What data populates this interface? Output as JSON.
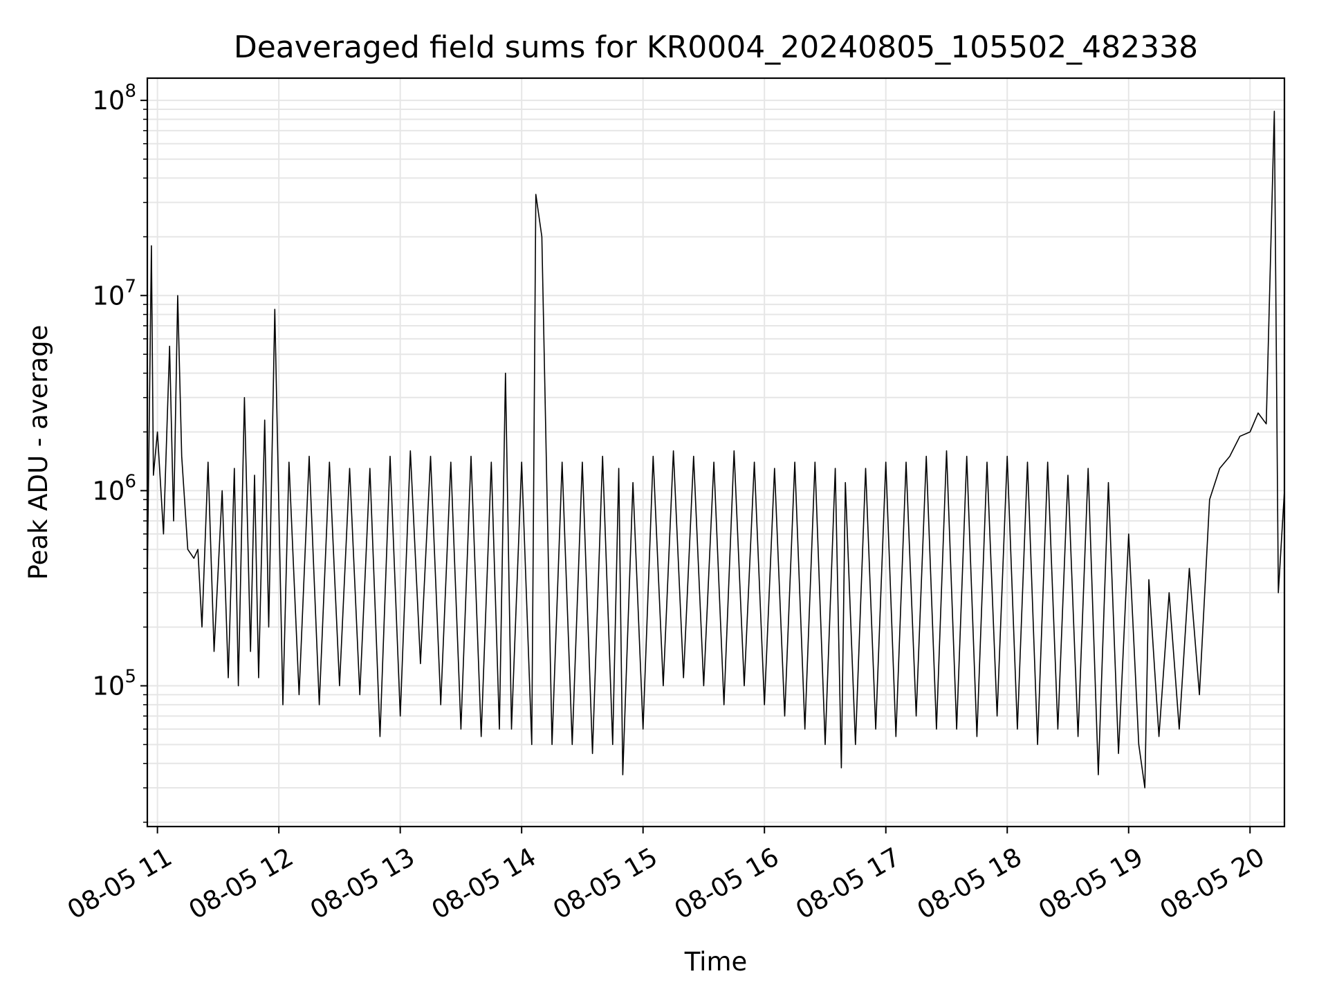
{
  "chart_data": {
    "type": "line",
    "title": "Deaveraged field sums for KR0004_20240805_105502_482338",
    "xlabel": "Time",
    "ylabel": "Peak ADU - average",
    "yscale": "log",
    "ylim": [
      19000,
      130000000
    ],
    "xlim": [
      "2024-08-05T10:55:00",
      "2024-08-05T20:17:00"
    ],
    "grid": true,
    "line_color": "#000000",
    "grid_color": "#e6e6e6",
    "x_ticks": [
      {
        "label": "08-05 11",
        "time": "2024-08-05T11:00:00"
      },
      {
        "label": "08-05 12",
        "time": "2024-08-05T12:00:00"
      },
      {
        "label": "08-05 13",
        "time": "2024-08-05T13:00:00"
      },
      {
        "label": "08-05 14",
        "time": "2024-08-05T14:00:00"
      },
      {
        "label": "08-05 15",
        "time": "2024-08-05T15:00:00"
      },
      {
        "label": "08-05 16",
        "time": "2024-08-05T16:00:00"
      },
      {
        "label": "08-05 17",
        "time": "2024-08-05T17:00:00"
      },
      {
        "label": "08-05 18",
        "time": "2024-08-05T18:00:00"
      },
      {
        "label": "08-05 19",
        "time": "2024-08-05T19:00:00"
      },
      {
        "label": "08-05 20",
        "time": "2024-08-05T20:00:00"
      }
    ],
    "y_ticks": [
      {
        "base": "10",
        "exp": "5",
        "value": 100000
      },
      {
        "base": "10",
        "exp": "6",
        "value": 1000000
      },
      {
        "base": "10",
        "exp": "7",
        "value": 10000000
      },
      {
        "base": "10",
        "exp": "8",
        "value": 100000000
      }
    ],
    "series": [
      {
        "x": [
          "2024-08-05T10:55",
          "2024-08-05T10:57",
          "2024-08-05T10:58",
          "2024-08-05T11:00",
          "2024-08-05T11:03",
          "2024-08-05T11:06",
          "2024-08-05T11:08",
          "2024-08-05T11:10",
          "2024-08-05T11:12",
          "2024-08-05T11:15",
          "2024-08-05T11:18",
          "2024-08-05T11:20",
          "2024-08-05T11:22",
          "2024-08-05T11:25",
          "2024-08-05T11:28",
          "2024-08-05T11:32",
          "2024-08-05T11:35",
          "2024-08-05T11:38",
          "2024-08-05T11:40",
          "2024-08-05T11:43",
          "2024-08-05T11:46",
          "2024-08-05T11:48",
          "2024-08-05T11:50",
          "2024-08-05T11:53",
          "2024-08-05T11:55",
          "2024-08-05T11:58",
          "2024-08-05T12:02",
          "2024-08-05T12:05",
          "2024-08-05T12:10",
          "2024-08-05T12:15",
          "2024-08-05T12:20",
          "2024-08-05T12:25",
          "2024-08-05T12:30",
          "2024-08-05T12:35",
          "2024-08-05T12:40",
          "2024-08-05T12:45",
          "2024-08-05T12:50",
          "2024-08-05T12:55",
          "2024-08-05T13:00",
          "2024-08-05T13:05",
          "2024-08-05T13:10",
          "2024-08-05T13:15",
          "2024-08-05T13:20",
          "2024-08-05T13:25",
          "2024-08-05T13:30",
          "2024-08-05T13:35",
          "2024-08-05T13:40",
          "2024-08-05T13:45",
          "2024-08-05T13:49",
          "2024-08-05T13:52",
          "2024-08-05T13:55",
          "2024-08-05T14:00",
          "2024-08-05T14:05",
          "2024-08-05T14:07",
          "2024-08-05T14:10",
          "2024-08-05T14:15",
          "2024-08-05T14:20",
          "2024-08-05T14:25",
          "2024-08-05T14:30",
          "2024-08-05T14:35",
          "2024-08-05T14:40",
          "2024-08-05T14:45",
          "2024-08-05T14:48",
          "2024-08-05T14:50",
          "2024-08-05T14:55",
          "2024-08-05T15:00",
          "2024-08-05T15:05",
          "2024-08-05T15:10",
          "2024-08-05T15:15",
          "2024-08-05T15:20",
          "2024-08-05T15:25",
          "2024-08-05T15:30",
          "2024-08-05T15:35",
          "2024-08-05T15:40",
          "2024-08-05T15:45",
          "2024-08-05T15:50",
          "2024-08-05T15:55",
          "2024-08-05T16:00",
          "2024-08-05T16:05",
          "2024-08-05T16:10",
          "2024-08-05T16:15",
          "2024-08-05T16:20",
          "2024-08-05T16:25",
          "2024-08-05T16:30",
          "2024-08-05T16:35",
          "2024-08-05T16:38",
          "2024-08-05T16:40",
          "2024-08-05T16:45",
          "2024-08-05T16:50",
          "2024-08-05T16:55",
          "2024-08-05T17:00",
          "2024-08-05T17:05",
          "2024-08-05T17:10",
          "2024-08-05T17:15",
          "2024-08-05T17:20",
          "2024-08-05T17:25",
          "2024-08-05T17:30",
          "2024-08-05T17:35",
          "2024-08-05T17:40",
          "2024-08-05T17:45",
          "2024-08-05T17:50",
          "2024-08-05T17:55",
          "2024-08-05T18:00",
          "2024-08-05T18:05",
          "2024-08-05T18:10",
          "2024-08-05T18:15",
          "2024-08-05T18:20",
          "2024-08-05T18:25",
          "2024-08-05T18:30",
          "2024-08-05T18:35",
          "2024-08-05T18:40",
          "2024-08-05T18:45",
          "2024-08-05T18:50",
          "2024-08-05T18:55",
          "2024-08-05T19:00",
          "2024-08-05T19:05",
          "2024-08-05T19:08",
          "2024-08-05T19:10",
          "2024-08-05T19:15",
          "2024-08-05T19:20",
          "2024-08-05T19:25",
          "2024-08-05T19:30",
          "2024-08-05T19:35",
          "2024-08-05T19:40",
          "2024-08-05T19:45",
          "2024-08-05T19:50",
          "2024-08-05T19:55",
          "2024-08-05T20:00",
          "2024-08-05T20:04",
          "2024-08-05T20:08",
          "2024-08-05T20:12",
          "2024-08-05T20:14",
          "2024-08-05T20:17"
        ],
        "y": [
          350000,
          18000000,
          1200000,
          2000000,
          600000,
          5500000,
          700000,
          10000000,
          1500000,
          500000,
          450000,
          500000,
          200000,
          1400000,
          150000,
          1000000,
          110000,
          1300000,
          100000,
          3000000,
          150000,
          1200000,
          110000,
          2300000,
          200000,
          8500000,
          80000,
          1400000,
          90000,
          1500000,
          80000,
          1400000,
          100000,
          1300000,
          90000,
          1300000,
          55000,
          1500000,
          70000,
          1600000,
          130000,
          1500000,
          80000,
          1400000,
          60000,
          1500000,
          55000,
          1400000,
          60000,
          4000000,
          60000,
          1400000,
          50000,
          33000000,
          20000000,
          50000,
          1400000,
          50000,
          1400000,
          45000,
          1500000,
          50000,
          1300000,
          35000,
          1100000,
          60000,
          1500000,
          100000,
          1600000,
          110000,
          1500000,
          100000,
          1400000,
          80000,
          1600000,
          100000,
          1400000,
          80000,
          1300000,
          70000,
          1400000,
          60000,
          1400000,
          50000,
          1300000,
          38000,
          1100000,
          50000,
          1300000,
          60000,
          1400000,
          55000,
          1400000,
          70000,
          1500000,
          60000,
          1600000,
          60000,
          1500000,
          55000,
          1400000,
          70000,
          1500000,
          60000,
          1400000,
          50000,
          1400000,
          60000,
          1200000,
          55000,
          1300000,
          35000,
          1100000,
          45000,
          600000,
          50000,
          30000,
          350000,
          55000,
          300000,
          60000,
          400000,
          90000,
          900000,
          1300000,
          1500000,
          1900000,
          2000000,
          2500000,
          2200000,
          88000000,
          300000,
          1000000
        ]
      }
    ]
  }
}
